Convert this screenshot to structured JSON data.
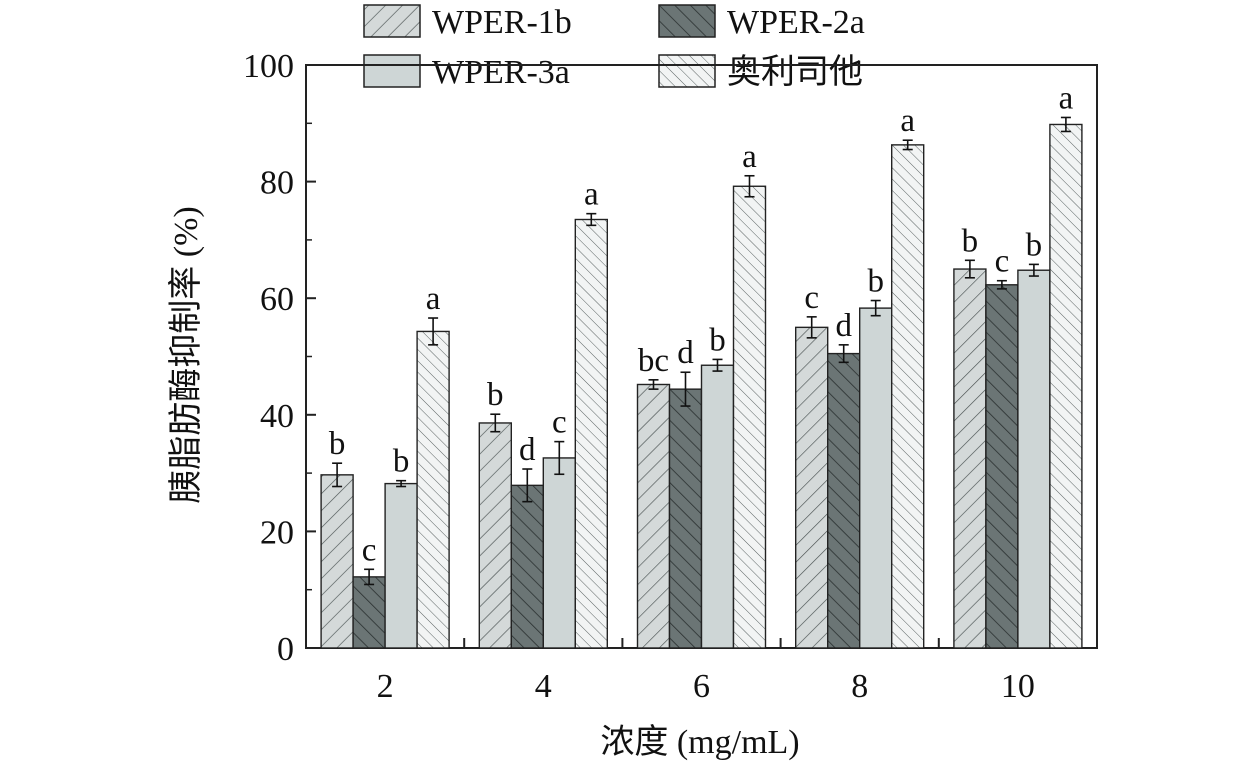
{
  "chart_data": {
    "type": "bar",
    "title": "",
    "xlabel": "浓度 (mg/mL)",
    "ylabel": "胰脂肪酶抑制率 (%)",
    "ylim": [
      0,
      100
    ],
    "yticks": [
      "0",
      "20",
      "40",
      "60",
      "80",
      "100"
    ],
    "categories": [
      "2",
      "4",
      "6",
      "8",
      "10"
    ],
    "legend_position": "top",
    "series": [
      {
        "name": "WPER-1b",
        "fill_color": "#d4d9d9",
        "pattern": "forward-diagonal",
        "values": [
          29.7,
          38.6,
          45.2,
          55.0,
          65.0
        ],
        "errors": [
          2.0,
          1.5,
          0.8,
          1.8,
          1.5
        ],
        "labels": [
          "b",
          "b",
          "bc",
          "c",
          "b"
        ]
      },
      {
        "name": "WPER-2a",
        "fill_color": "#6b7575",
        "pattern": "back-diagonal",
        "values": [
          12.2,
          27.9,
          44.4,
          50.5,
          62.3
        ],
        "errors": [
          1.3,
          2.8,
          2.9,
          1.5,
          0.7
        ],
        "labels": [
          "c",
          "d",
          "d",
          "d",
          "c"
        ]
      },
      {
        "name": "WPER-3a",
        "fill_color": "#ced6d6",
        "pattern": "solid",
        "values": [
          28.2,
          32.6,
          48.5,
          58.3,
          64.8
        ],
        "errors": [
          0.5,
          2.8,
          1.0,
          1.3,
          1.0
        ],
        "labels": [
          "b",
          "c",
          "b",
          "b",
          "b"
        ]
      },
      {
        "name": "奥利司他",
        "fill_color": "#f2f4f4",
        "pattern": "back-diagonal-light",
        "values": [
          54.3,
          73.5,
          79.2,
          86.3,
          89.8
        ],
        "errors": [
          2.3,
          1.0,
          1.8,
          0.8,
          1.2
        ],
        "labels": [
          "a",
          "a",
          "a",
          "a",
          "a"
        ]
      }
    ]
  }
}
